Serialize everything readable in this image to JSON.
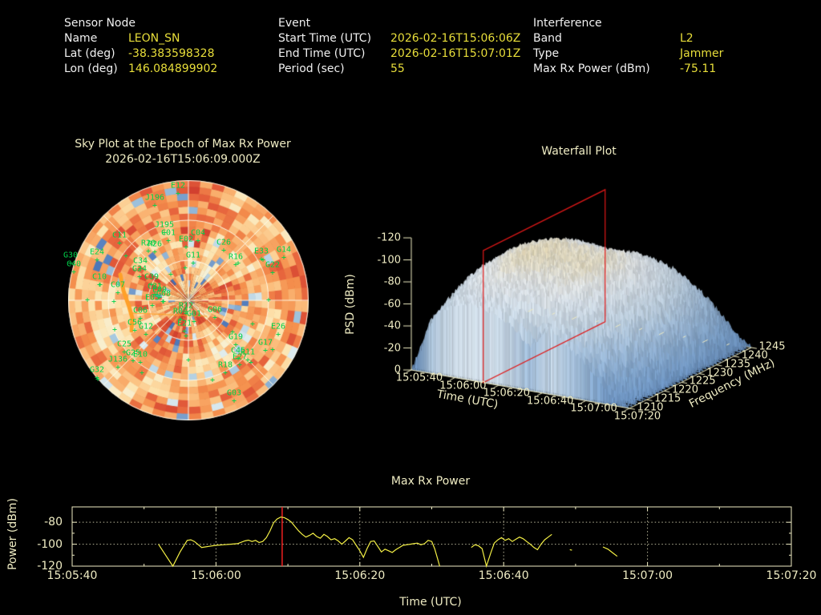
{
  "header": {
    "sensor": {
      "title": "Sensor Node",
      "rows": [
        [
          "Name",
          "LEON_SN"
        ],
        [
          "Lat (deg)",
          "-38.383598328"
        ],
        [
          "Lon (deg)",
          "146.084899902"
        ]
      ]
    },
    "event": {
      "title": "Event",
      "rows": [
        [
          "Start Time (UTC)",
          "2026-02-16T15:06:06Z"
        ],
        [
          "End Time (UTC)",
          "2026-02-16T15:07:01Z"
        ],
        [
          "Period (sec)",
          "55"
        ]
      ]
    },
    "interference": {
      "title": "Interference",
      "rows": [
        [
          "Band",
          "L2"
        ],
        [
          "Type",
          "Jammer"
        ],
        [
          "Max Rx Power (dBm)",
          "-75.11"
        ]
      ]
    }
  },
  "colors": {
    "background": "#000000",
    "text_primary": "#f0f0f0",
    "value_yellow": "#e8de3a",
    "plot_text": "#efecc3",
    "satellite_green": "#00d24a",
    "series_yellow": "#f3ef45",
    "epoch_red": "#ff2222",
    "slice_red": "#e01818",
    "track_orange": "#ffa028"
  },
  "chart_data": [
    {
      "id": "sky_plot",
      "type": "heatmap",
      "projection": "polar",
      "title": "Sky Plot at the Epoch of Max Rx Power",
      "subtitle": "2026-02-16T15:06:09.000Z",
      "rings": 18,
      "sectors": 60,
      "elevation_circles": 3,
      "azimuth_spoke_step_deg": 45,
      "palette": [
        "#28519f",
        "#5d87c3",
        "#a4c6de",
        "#dcebef",
        "#f7f2d9",
        "#fde3ad",
        "#fbbd7c",
        "#f5914e",
        "#e55f3b",
        "#ce3a2c"
      ],
      "satellites": [
        [
          "E12",
          137,
          7
        ],
        [
          "J196",
          108,
          22
        ],
        [
          "J195",
          120,
          56
        ],
        [
          "C11",
          64,
          69
        ],
        [
          "C01",
          125,
          66
        ],
        [
          "C04",
          162,
          66
        ],
        [
          "E02",
          147,
          74
        ],
        [
          "R20",
          100,
          79
        ],
        [
          "R26",
          108,
          80
        ],
        [
          "C26",
          194,
          78
        ],
        [
          "G11",
          156,
          94
        ],
        [
          "R16",
          209,
          96
        ],
        [
          "E33",
          241,
          89
        ],
        [
          "G14",
          269,
          87
        ],
        [
          "G22",
          255,
          106
        ],
        [
          "E24",
          36,
          90
        ],
        [
          "G30",
          3,
          94
        ],
        [
          "C40",
          7,
          105
        ],
        [
          "C10",
          39,
          121
        ],
        [
          "C34",
          90,
          101
        ],
        [
          "G24",
          89,
          111
        ],
        [
          "C39",
          104,
          121
        ],
        [
          "C31",
          108,
          133
        ],
        [
          "C07",
          62,
          131
        ],
        [
          "E09",
          114,
          137
        ],
        [
          "G08",
          119,
          142
        ],
        [
          "E05",
          105,
          147
        ],
        [
          "C06",
          90,
          163
        ],
        [
          "R12",
          147,
          157
        ],
        [
          "R04",
          140,
          164
        ],
        [
          "G01",
          157,
          167
        ],
        [
          "E21",
          145,
          179
        ],
        [
          "G06",
          183,
          162
        ],
        [
          "C56",
          83,
          178
        ],
        [
          "G12",
          97,
          183
        ],
        [
          "C25",
          70,
          205
        ],
        [
          "J136",
          62,
          224
        ],
        [
          "G25",
          81,
          216
        ],
        [
          "E10",
          90,
          218
        ],
        [
          "G32",
          36,
          237
        ],
        [
          "R18",
          196,
          231
        ],
        [
          "G19",
          209,
          196
        ],
        [
          "G17",
          246,
          203
        ],
        [
          "C45",
          212,
          213
        ],
        [
          "R11",
          224,
          215
        ],
        [
          "E27",
          214,
          221
        ],
        [
          "E26",
          262,
          183
        ],
        [
          "G03",
          207,
          266
        ]
      ],
      "extra_markers": [
        [
          40,
          131
        ],
        [
          57,
          152
        ],
        [
          24,
          150
        ],
        [
          118,
          152
        ],
        [
          58,
          187
        ],
        [
          147,
          195
        ],
        [
          205,
          190
        ],
        [
          255,
          212
        ],
        [
          228,
          228
        ],
        [
          37,
          249
        ],
        [
          92,
          241
        ],
        [
          128,
          118
        ],
        [
          243,
          100
        ],
        [
          212,
          104
        ],
        [
          146,
          110
        ],
        [
          180,
          250
        ],
        [
          230,
          180
        ],
        [
          72,
          95
        ],
        [
          150,
          225
        ],
        [
          250,
          150
        ]
      ],
      "track": [
        [
          65,
          118
        ],
        [
          69,
          138
        ],
        [
          76,
          158
        ],
        [
          80,
          172
        ],
        [
          79,
          188
        ]
      ],
      "track_thin": [
        [
          80,
          166
        ],
        [
          173,
          170
        ]
      ]
    },
    {
      "id": "waterfall",
      "type": "heatmap",
      "title": "Waterfall Plot",
      "xlabel": "Time (UTC)",
      "ylabel": "Frequency (MHz)",
      "zlabel": "PSD (dBm)",
      "x_ticks": [
        "15:05:40",
        "15:06:00",
        "15:06:20",
        "15:06:40",
        "15:07:00",
        "15:07:20"
      ],
      "y_ticks": [
        "1210",
        "1215",
        "1220",
        "1225",
        "1230",
        "1235",
        "1240",
        "1245"
      ],
      "z_ticks": [
        "0",
        "-20",
        "-40",
        "-60",
        "-80",
        "-100",
        "-120"
      ],
      "zlim": [
        -120,
        0
      ],
      "slice_time_utc": "15:06:09",
      "slice_t_frac": 0.33,
      "freq_mhz": [
        1210,
        1215,
        1220,
        1225,
        1230,
        1235,
        1240,
        1245
      ],
      "time_span_sec": 100,
      "grid_psd_dbm": [
        [
          -120,
          -70,
          -55,
          -50,
          -55,
          -62,
          -80,
          -60,
          -75,
          -90,
          -110,
          -120
        ],
        [
          -110,
          -60,
          -45,
          -40,
          -42,
          -45,
          -42,
          -48,
          -60,
          -80,
          -100,
          -120
        ],
        [
          -100,
          -50,
          -38,
          -32,
          -35,
          -36,
          -34,
          -40,
          -52,
          -70,
          -95,
          -120
        ],
        [
          -95,
          -45,
          -33,
          -28,
          -30,
          -31,
          -30,
          -35,
          -48,
          -65,
          -90,
          -120
        ],
        [
          -95,
          -45,
          -32,
          -28,
          -29,
          -30,
          -30,
          -34,
          -46,
          -62,
          -88,
          -120
        ],
        [
          -100,
          -50,
          -36,
          -31,
          -32,
          -33,
          -33,
          -38,
          -50,
          -66,
          -90,
          -120
        ],
        [
          -105,
          -58,
          -45,
          -40,
          -42,
          -44,
          -42,
          -48,
          -58,
          -75,
          -95,
          -120
        ],
        [
          -115,
          -70,
          -58,
          -52,
          -55,
          -58,
          -55,
          -60,
          -70,
          -85,
          -105,
          -120
        ]
      ]
    },
    {
      "id": "max_rx_power",
      "type": "line",
      "title": "Max Rx Power",
      "xlabel": "Time (UTC)",
      "ylabel": "Power (dBm)",
      "x_ticks": [
        "15:05:40",
        "15:06:00",
        "15:06:20",
        "15:06:40",
        "15:07:00",
        "15:07:20"
      ],
      "y_ticks": [
        -80,
        -100,
        -120
      ],
      "ylim": [
        -66,
        -120
      ],
      "x_span_sec": 100,
      "epoch_marker_sec": 29.2,
      "segments": [
        [
          [
            12,
            -100
          ],
          [
            13,
            -110
          ],
          [
            14,
            -120
          ],
          [
            15,
            -107
          ],
          [
            16,
            -96.5
          ],
          [
            16.5,
            -96
          ],
          [
            17,
            -97.5
          ],
          [
            18,
            -103
          ],
          [
            18.5,
            -102.5
          ],
          [
            19,
            -102
          ],
          [
            20,
            -101
          ],
          [
            21,
            -100.5
          ],
          [
            22,
            -100
          ],
          [
            23,
            -99.5
          ],
          [
            24,
            -97
          ],
          [
            24.5,
            -96.3
          ],
          [
            25,
            -97.5
          ],
          [
            25.5,
            -96.5
          ],
          [
            26,
            -98.5
          ],
          [
            26.5,
            -97.5
          ],
          [
            27,
            -94
          ],
          [
            27.5,
            -88
          ],
          [
            28,
            -80.5
          ],
          [
            28.5,
            -77
          ],
          [
            29,
            -75.3
          ],
          [
            29.5,
            -75.8
          ],
          [
            30,
            -77.5
          ],
          [
            30.5,
            -80
          ],
          [
            31,
            -84
          ],
          [
            31.5,
            -88
          ],
          [
            32,
            -91
          ],
          [
            32.5,
            -93.5
          ],
          [
            33,
            -92
          ],
          [
            33.5,
            -90
          ],
          [
            34,
            -93
          ],
          [
            34.5,
            -94.5
          ],
          [
            35,
            -91
          ],
          [
            35.5,
            -93
          ],
          [
            36,
            -96
          ],
          [
            36.5,
            -95
          ],
          [
            37,
            -97
          ],
          [
            37.5,
            -100
          ],
          [
            38,
            -97
          ],
          [
            38.5,
            -94
          ],
          [
            39,
            -96
          ],
          [
            39.5,
            -101
          ],
          [
            40,
            -106
          ],
          [
            40.5,
            -112
          ],
          [
            41,
            -104
          ],
          [
            41.5,
            -97.5
          ],
          [
            42,
            -97
          ],
          [
            42.5,
            -102
          ],
          [
            43,
            -107
          ],
          [
            43.5,
            -104.5
          ],
          [
            44,
            -106
          ],
          [
            44.5,
            -107.5
          ],
          [
            45,
            -105
          ],
          [
            45.5,
            -103
          ],
          [
            46,
            -101
          ],
          [
            46.5,
            -100.5
          ],
          [
            47,
            -100
          ],
          [
            47.5,
            -99.5
          ],
          [
            48,
            -99
          ],
          [
            48.5,
            -100.5
          ],
          [
            49,
            -99.5
          ],
          [
            49.5,
            -96.5
          ],
          [
            50,
            -97.5
          ],
          [
            50.4,
            -104
          ],
          [
            50.8,
            -113
          ],
          [
            51.1,
            -120
          ]
        ],
        [
          [
            55.5,
            -103
          ],
          [
            56,
            -100.5
          ],
          [
            56.5,
            -101.5
          ],
          [
            57,
            -104
          ],
          [
            57.3,
            -112
          ],
          [
            57.6,
            -120
          ],
          [
            58.2,
            -108
          ],
          [
            58.7,
            -99
          ],
          [
            59.2,
            -96
          ],
          [
            59.7,
            -94
          ],
          [
            60.2,
            -96.5
          ],
          [
            60.7,
            -95
          ],
          [
            61.2,
            -97.5
          ],
          [
            61.7,
            -95.5
          ],
          [
            62.2,
            -93.5
          ],
          [
            62.7,
            -95
          ],
          [
            63.2,
            -97.5
          ],
          [
            63.7,
            -100
          ],
          [
            64.2,
            -103
          ],
          [
            64.7,
            -105
          ],
          [
            65.2,
            -100
          ],
          [
            65.7,
            -96
          ],
          [
            66.2,
            -93.5
          ],
          [
            66.7,
            -91
          ]
        ],
        [
          [
            69.2,
            -105
          ],
          [
            69.5,
            -105.5
          ]
        ],
        [
          [
            73.8,
            -102.5
          ],
          [
            74.5,
            -104.5
          ],
          [
            75.2,
            -108
          ],
          [
            75.8,
            -111
          ]
        ]
      ]
    }
  ]
}
